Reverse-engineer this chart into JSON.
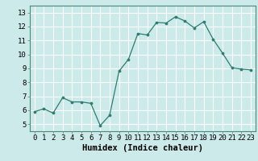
{
  "x": [
    0,
    1,
    2,
    3,
    4,
    5,
    6,
    7,
    8,
    9,
    10,
    11,
    12,
    13,
    14,
    15,
    16,
    17,
    18,
    19,
    20,
    21,
    22,
    23
  ],
  "y": [
    5.9,
    6.1,
    5.8,
    6.9,
    6.6,
    6.6,
    6.5,
    4.9,
    5.65,
    8.8,
    9.65,
    11.5,
    11.4,
    12.3,
    12.25,
    12.7,
    12.4,
    11.9,
    12.35,
    11.1,
    10.1,
    9.05,
    8.95,
    8.9
  ],
  "line_color": "#2d7d6e",
  "marker": "o",
  "marker_size": 2.2,
  "bg_color": "#cceaea",
  "grid_color": "#ffffff",
  "xlabel": "Humidex (Indice chaleur)",
  "xlim": [
    -0.5,
    23.5
  ],
  "ylim": [
    4.5,
    13.5
  ],
  "yticks": [
    5,
    6,
    7,
    8,
    9,
    10,
    11,
    12,
    13
  ],
  "xticks": [
    0,
    1,
    2,
    3,
    4,
    5,
    6,
    7,
    8,
    9,
    10,
    11,
    12,
    13,
    14,
    15,
    16,
    17,
    18,
    19,
    20,
    21,
    22,
    23
  ],
  "tick_label_fontsize": 6.5,
  "xlabel_fontsize": 7.5
}
